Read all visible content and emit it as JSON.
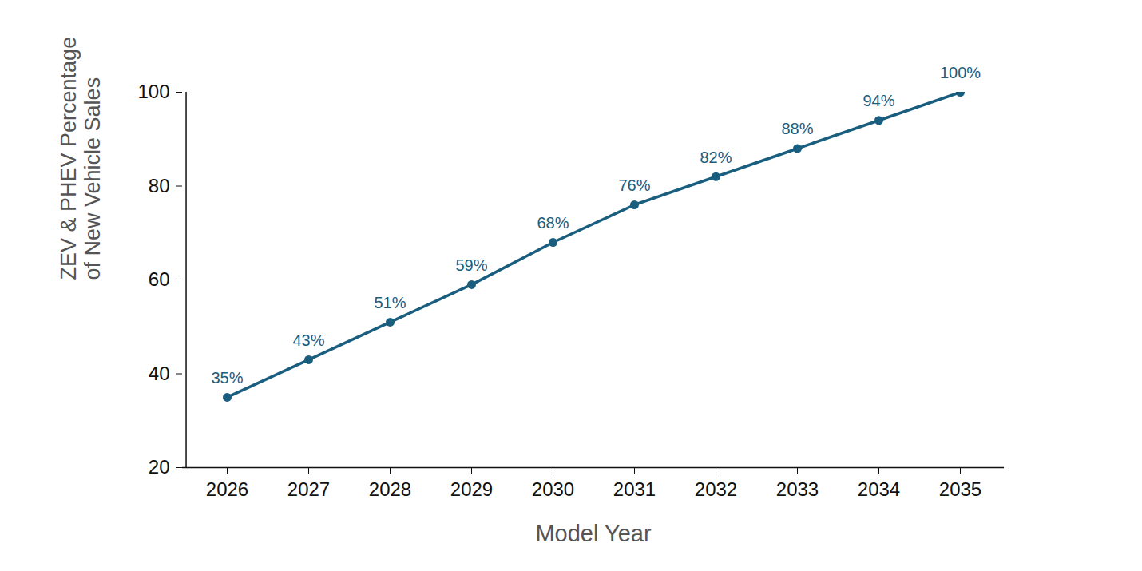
{
  "chart_data": {
    "type": "line",
    "x_label": "Model Year",
    "y_label": "ZEV & PHEV Percentage\nof New Vehicle Sales",
    "categories": [
      "2026",
      "2027",
      "2028",
      "2029",
      "2030",
      "2031",
      "2032",
      "2033",
      "2034",
      "2035"
    ],
    "values": [
      35,
      43,
      51,
      59,
      68,
      76,
      82,
      88,
      94,
      100
    ],
    "value_labels": [
      "35%",
      "43%",
      "51%",
      "59%",
      "68%",
      "76%",
      "82%",
      "88%",
      "94%",
      "100%"
    ],
    "color": "#195e7e",
    "marker": "circle",
    "data_labels": true,
    "ylim": [
      20,
      100
    ],
    "yticks": [
      20,
      40,
      60,
      80,
      100
    ]
  }
}
